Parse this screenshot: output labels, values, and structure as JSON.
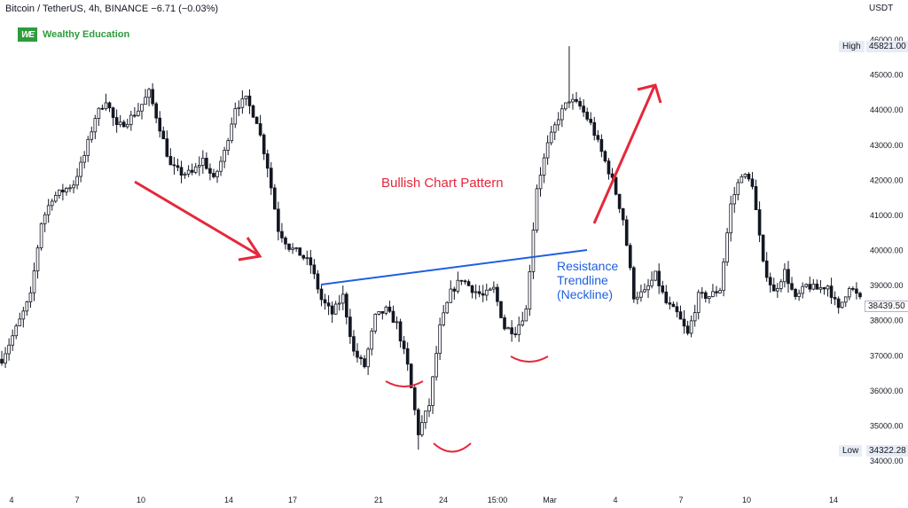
{
  "header": {
    "title": "Bitcoin / TetherUS, 4h, BINANCE",
    "change": "−6.71 (−0.03%)"
  },
  "brand": {
    "logo": "WE",
    "name": "Wealthy Education"
  },
  "currency": "USDT",
  "high": {
    "label": "High",
    "value": "45821.00"
  },
  "low": {
    "label": "Low",
    "value": "34322.28"
  },
  "last_price": "38439.50",
  "annotations": {
    "pattern_title": "Bullish Chart Pattern",
    "neckline": [
      "Resistance",
      "Trendline",
      "(Neckline)"
    ]
  },
  "colors": {
    "candle": "#131722",
    "annotation_red": "#e5283b",
    "neckline_blue": "#1f5fe0",
    "brand_green": "#2e9b3c"
  },
  "chart_data": {
    "type": "candlestick",
    "xlabel": "",
    "ylabel": "",
    "ylim": [
      34000,
      46000
    ],
    "y_ticks": [
      34000,
      35000,
      36000,
      37000,
      38000,
      39000,
      40000,
      41000,
      42000,
      43000,
      44000,
      45000,
      46000
    ],
    "y_tick_labels": [
      "34000.00",
      "35000.00",
      "36000.00",
      "37000.00",
      "38000.00",
      "39000.00",
      "40000.00",
      "41000.00",
      "42000.00",
      "43000.00",
      "44000.00",
      "45000.00",
      "46000.00"
    ],
    "x_ticks": [
      "4",
      "7",
      "10",
      "14",
      "17",
      "21",
      "24",
      "15:00",
      "Mar",
      "4",
      "7",
      "10",
      "14"
    ],
    "close_path": [
      [
        0,
        36900
      ],
      [
        5,
        38000
      ],
      [
        8,
        38700
      ],
      [
        11,
        40800
      ],
      [
        14,
        41500
      ],
      [
        17,
        41700
      ],
      [
        20,
        41900
      ],
      [
        23,
        42700
      ],
      [
        26,
        43800
      ],
      [
        29,
        44300
      ],
      [
        32,
        43500
      ],
      [
        35,
        43700
      ],
      [
        38,
        44000
      ],
      [
        41,
        44500
      ],
      [
        44,
        43500
      ],
      [
        47,
        42400
      ],
      [
        50,
        42200
      ],
      [
        53,
        42200
      ],
      [
        56,
        42600
      ],
      [
        59,
        42000
      ],
      [
        62,
        42800
      ],
      [
        65,
        44100
      ],
      [
        68,
        44300
      ],
      [
        71,
        43700
      ],
      [
        74,
        42400
      ],
      [
        77,
        40600
      ],
      [
        80,
        40100
      ],
      [
        83,
        39900
      ],
      [
        86,
        39600
      ],
      [
        89,
        38600
      ],
      [
        92,
        38200
      ],
      [
        95,
        38700
      ],
      [
        98,
        37100
      ],
      [
        101,
        36700
      ],
      [
        104,
        38100
      ],
      [
        107,
        38300
      ],
      [
        110,
        37900
      ],
      [
        113,
        36700
      ],
      [
        116,
        34800
      ],
      [
        119,
        35600
      ],
      [
        122,
        37800
      ],
      [
        125,
        38800
      ],
      [
        128,
        39200
      ],
      [
        131,
        38900
      ],
      [
        134,
        38700
      ],
      [
        137,
        38900
      ],
      [
        140,
        37800
      ],
      [
        143,
        37700
      ],
      [
        146,
        38300
      ],
      [
        149,
        41800
      ],
      [
        152,
        43000
      ],
      [
        155,
        43800
      ],
      [
        158,
        44300
      ],
      [
        161,
        44100
      ],
      [
        164,
        43600
      ],
      [
        167,
        42800
      ],
      [
        170,
        42000
      ],
      [
        173,
        40900
      ],
      [
        176,
        38700
      ],
      [
        179,
        38800
      ],
      [
        182,
        39300
      ],
      [
        185,
        38500
      ],
      [
        188,
        38200
      ],
      [
        191,
        37600
      ],
      [
        194,
        38700
      ],
      [
        197,
        38700
      ],
      [
        200,
        38900
      ],
      [
        203,
        41300
      ],
      [
        206,
        42200
      ],
      [
        209,
        41900
      ],
      [
        212,
        39600
      ],
      [
        215,
        38800
      ],
      [
        218,
        39400
      ],
      [
        221,
        38600
      ],
      [
        224,
        39000
      ],
      [
        227,
        38900
      ],
      [
        230,
        39000
      ],
      [
        233,
        38300
      ],
      [
        236,
        39000
      ],
      [
        239,
        38600
      ]
    ],
    "high": 45821.0,
    "low": 34322.28,
    "last": 38439.5
  }
}
